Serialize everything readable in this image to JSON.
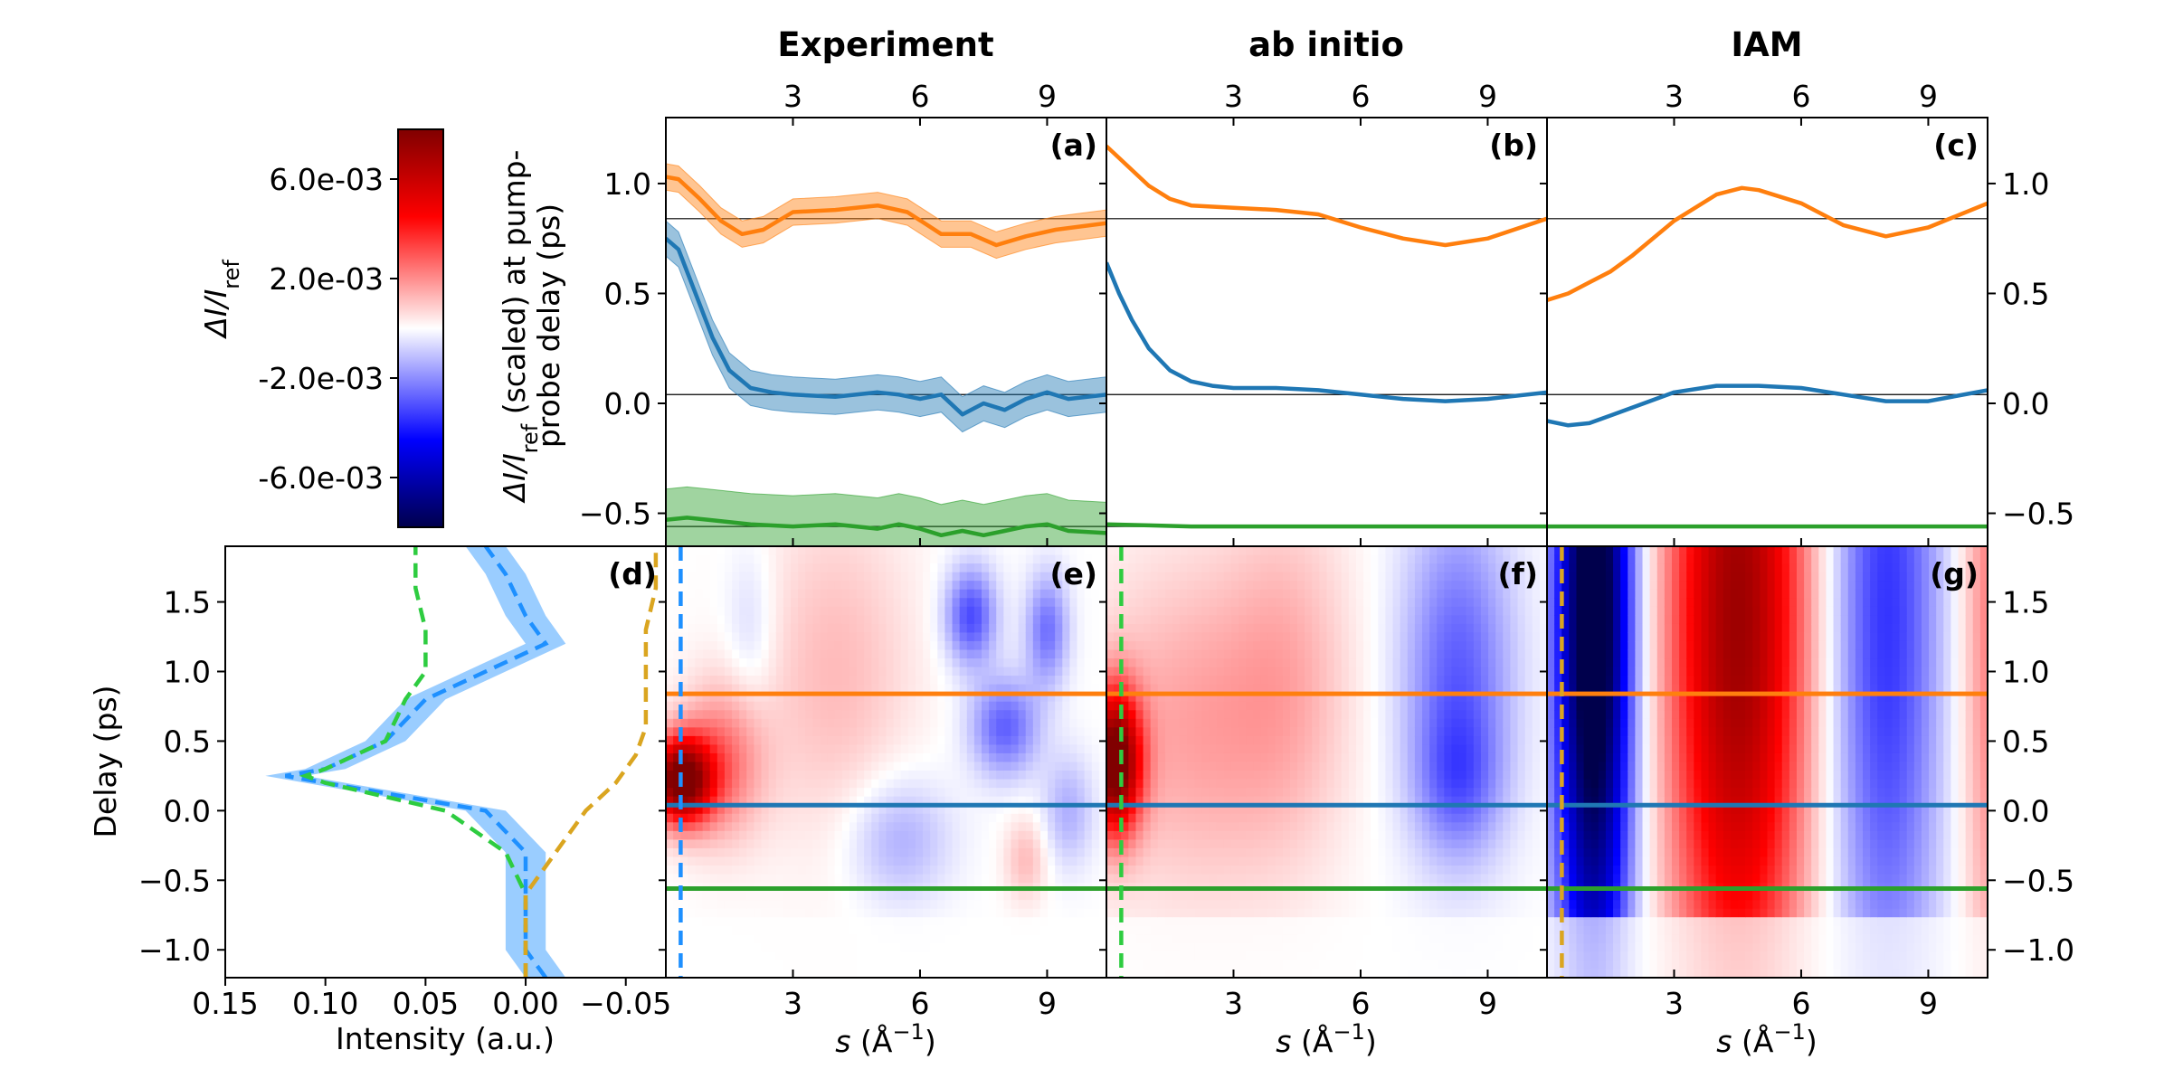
{
  "chart_data": {
    "type": "line",
    "top_x_ticks": [
      "3",
      "6",
      "9"
    ],
    "left_y_ticks": [
      "1.0",
      "0.5",
      "0.0",
      "−0.5"
    ],
    "right_y_ticks": [
      "1.0",
      "0.5",
      "0.0",
      "−0.5"
    ],
    "delay_ticks": [
      "1.5",
      "1.0",
      "0.5",
      "0.0",
      "−0.5",
      "−1.0"
    ],
    "s_ticks": [
      "3",
      "6",
      "9"
    ],
    "intensity_ticks": [
      "0.15",
      "0.10",
      "0.05",
      "0.00",
      "−0.05"
    ],
    "colorbar_ticks": [
      "6.0e-03",
      "2.0e-03",
      "-2.0e-03",
      "-6.0e-03"
    ],
    "colorbar_label": "ΔI/I",
    "colorbar_label_sub": "ref",
    "ylabel_top_line1_a": "ΔI/I",
    "ylabel_top_line1_sub": "ref",
    "ylabel_top_line1_b": " (scaled) at pump-",
    "ylabel_top_line2": "probe delay (ps)",
    "delay_label": "Delay (ps)",
    "intensity_label": "Intensity (a.u.)",
    "s_label_a": "s",
    "s_label_b": " (Å",
    "s_label_sup": "−1",
    "s_label_c": ")",
    "s_range": [
      0.0,
      10.4
    ],
    "delay_range": [
      -1.2,
      1.9
    ],
    "lineout_range": [
      -0.65,
      1.3
    ],
    "colorbar_range": [
      -0.008,
      0.008
    ],
    "intensity_range": [
      0.15,
      -0.07
    ],
    "reference_levels": {
      "orange": 0.84,
      "blue": 0.04,
      "green": -0.56
    },
    "colors": {
      "orange": "#ff7f0e",
      "blue": "#1f77b4",
      "green": "#2ca02c",
      "dash_blue": "#1e90ff",
      "dash_green": "#2ecc40",
      "dash_gold": "#daa520"
    },
    "panels": [
      {
        "id": "a",
        "label": "(a)",
        "title": "Experiment",
        "series": [
          {
            "color": "orange",
            "s": [
              0,
              0.3,
              0.8,
              1.3,
              1.8,
              2.3,
              3,
              4,
              5,
              5.7,
              6.5,
              7.2,
              7.8,
              8.5,
              9.2,
              10.4
            ],
            "y": [
              1.03,
              1.02,
              0.93,
              0.83,
              0.77,
              0.79,
              0.87,
              0.88,
              0.9,
              0.87,
              0.77,
              0.77,
              0.72,
              0.76,
              0.79,
              0.82
            ],
            "band": 0.06
          },
          {
            "color": "blue",
            "s": [
              0,
              0.3,
              0.7,
              1.1,
              1.5,
              2,
              2.5,
              3,
              4,
              5,
              5.5,
              6,
              6.5,
              7,
              7.5,
              8,
              8.5,
              9,
              9.5,
              10.4
            ],
            "y": [
              0.75,
              0.7,
              0.5,
              0.3,
              0.15,
              0.07,
              0.05,
              0.04,
              0.03,
              0.05,
              0.04,
              0.02,
              0.04,
              -0.05,
              0,
              -0.03,
              0.02,
              0.05,
              0.02,
              0.04
            ],
            "band": 0.08
          },
          {
            "color": "green",
            "s": [
              0,
              0.5,
              1,
              2,
              3,
              4,
              5,
              5.5,
              6,
              6.5,
              7,
              7.5,
              8,
              8.5,
              9,
              9.5,
              10.4
            ],
            "y": [
              -0.53,
              -0.52,
              -0.53,
              -0.55,
              -0.56,
              -0.55,
              -0.57,
              -0.55,
              -0.57,
              -0.6,
              -0.58,
              -0.6,
              -0.58,
              -0.56,
              -0.55,
              -0.58,
              -0.59
            ],
            "band": 0.14
          }
        ],
        "dashed_s": 0.35,
        "dashed_color": "dash_blue",
        "heatmap": [
          {
            "s": 0.35,
            "d": 0.22,
            "rs": 0.7,
            "rd": 0.3,
            "v": 0.0085
          },
          {
            "s": 1.3,
            "d": 0.35,
            "rs": 1.0,
            "rd": 0.55,
            "v": 0.0025
          },
          {
            "s": 2.0,
            "d": 1.3,
            "rs": 0.6,
            "rd": 0.6,
            "v": -0.0008
          },
          {
            "s": 4.0,
            "d": 1.0,
            "rs": 1.8,
            "rd": 1.2,
            "v": 0.0012
          },
          {
            "s": 7.2,
            "d": 1.4,
            "rs": 0.6,
            "rd": 0.35,
            "v": -0.0032
          },
          {
            "s": 8.0,
            "d": 0.6,
            "rs": 0.8,
            "rd": 0.35,
            "v": -0.0028
          },
          {
            "s": 9.0,
            "d": 1.3,
            "rs": 0.5,
            "rd": 0.4,
            "v": -0.0025
          },
          {
            "s": 5.5,
            "d": -0.2,
            "rs": 1.2,
            "rd": 0.45,
            "v": -0.0015
          },
          {
            "s": 8.5,
            "d": -0.35,
            "rs": 0.5,
            "rd": 0.3,
            "v": 0.0012
          },
          {
            "s": 9.5,
            "d": 0.0,
            "rs": 0.6,
            "rd": 0.4,
            "v": -0.0014
          }
        ]
      },
      {
        "id": "b",
        "label": "(b)",
        "title": "ab initio",
        "series": [
          {
            "color": "orange",
            "s": [
              0,
              0.5,
              1,
              1.5,
              2,
              3,
              4,
              5,
              6,
              7,
              8,
              9,
              10.4
            ],
            "y": [
              1.17,
              1.08,
              0.99,
              0.93,
              0.9,
              0.89,
              0.88,
              0.86,
              0.8,
              0.75,
              0.72,
              0.75,
              0.84
            ],
            "band": 0
          },
          {
            "color": "blue",
            "s": [
              0,
              0.3,
              0.6,
              1,
              1.5,
              2,
              2.5,
              3,
              4,
              5,
              6,
              7,
              8,
              9,
              10.4
            ],
            "y": [
              0.64,
              0.5,
              0.38,
              0.25,
              0.15,
              0.1,
              0.08,
              0.07,
              0.07,
              0.06,
              0.04,
              0.02,
              0.01,
              0.02,
              0.05
            ],
            "band": 0
          },
          {
            "color": "green",
            "s": [
              0,
              1,
              2,
              4,
              6,
              8,
              10.4
            ],
            "y": [
              -0.55,
              -0.555,
              -0.56,
              -0.56,
              -0.56,
              -0.56,
              -0.56
            ],
            "band": 0
          }
        ],
        "dashed_s": 0.35,
        "dashed_color": "dash_green",
        "heatmap": [
          {
            "s": 0.2,
            "d": 0.35,
            "rs": 0.6,
            "rd": 0.5,
            "v": 0.0085
          },
          {
            "s": 2.0,
            "d": 0.6,
            "rs": 2.5,
            "rd": 1.2,
            "v": 0.0016
          },
          {
            "s": 4.3,
            "d": 1.0,
            "rs": 1.5,
            "rd": 1.3,
            "v": 0.0011
          },
          {
            "s": 8.3,
            "d": 1.0,
            "rs": 1.3,
            "rd": 1.2,
            "v": -0.0028
          },
          {
            "s": 8.3,
            "d": 0.2,
            "rs": 1.0,
            "rd": 0.5,
            "v": -0.0016
          }
        ]
      },
      {
        "id": "c",
        "label": "(c)",
        "title": "IAM",
        "series": [
          {
            "color": "orange",
            "s": [
              0,
              0.5,
              1,
              1.5,
              2,
              3,
              4,
              4.6,
              5,
              6,
              7,
              8,
              9,
              10.4
            ],
            "y": [
              0.47,
              0.5,
              0.55,
              0.6,
              0.67,
              0.83,
              0.95,
              0.98,
              0.97,
              0.91,
              0.81,
              0.76,
              0.8,
              0.91
            ],
            "band": 0
          },
          {
            "color": "blue",
            "s": [
              0,
              0.5,
              1,
              2,
              3,
              4,
              5,
              6,
              7,
              8,
              9,
              10.4
            ],
            "y": [
              -0.08,
              -0.1,
              -0.09,
              -0.02,
              0.05,
              0.08,
              0.08,
              0.07,
              0.04,
              0.01,
              0.01,
              0.06
            ],
            "band": 0
          },
          {
            "color": "green",
            "s": [
              0,
              2,
              4,
              6,
              8,
              10.4
            ],
            "y": [
              -0.56,
              -0.56,
              -0.56,
              -0.56,
              -0.56,
              -0.56
            ],
            "band": 0
          }
        ],
        "dashed_s": 0.35,
        "dashed_color": "dash_gold",
        "heatmap": [
          {
            "s": 1.1,
            "d": 1.4,
            "rs": 0.9,
            "rd": 3.0,
            "v": -0.0095
          },
          {
            "s": 4.5,
            "d": 1.4,
            "rs": 1.6,
            "rd": 3.0,
            "v": 0.0072
          },
          {
            "s": 8.0,
            "d": 1.4,
            "rs": 1.3,
            "rd": 3.0,
            "v": -0.0036
          },
          {
            "s": 10.6,
            "d": 1.4,
            "rs": 0.8,
            "rd": 3.0,
            "v": 0.0025
          }
        ]
      }
    ],
    "intensity_panel": {
      "label": "(d)",
      "blue": {
        "d": [
          -1.2,
          -1.0,
          -0.8,
          -0.6,
          -0.3,
          0.0,
          0.1,
          0.2,
          0.25,
          0.3,
          0.5,
          0.8,
          1.0,
          1.2,
          1.4,
          1.7,
          1.9
        ],
        "x": [
          -0.01,
          0.0,
          0.0,
          0.0,
          0.0,
          0.02,
          0.06,
          0.1,
          0.12,
          0.1,
          0.07,
          0.05,
          0.02,
          -0.01,
          0.0,
          0.01,
          0.02
        ],
        "band": 0.01
      },
      "green": {
        "d": [
          -1.2,
          -0.6,
          -0.3,
          0.0,
          0.1,
          0.2,
          0.25,
          0.3,
          0.5,
          0.8,
          1.0,
          1.3,
          1.6,
          1.9
        ],
        "x": [
          0.0,
          0.0,
          0.01,
          0.04,
          0.07,
          0.1,
          0.11,
          0.1,
          0.07,
          0.06,
          0.05,
          0.05,
          0.055,
          0.055
        ],
        "band": 0
      },
      "gold": {
        "d": [
          -1.2,
          -0.8,
          -0.6,
          -0.4,
          -0.2,
          0.0,
          0.2,
          0.4,
          0.6,
          0.8,
          1.0,
          1.3,
          1.6,
          1.9
        ],
        "x": [
          0.0,
          0.0,
          0.0,
          -0.01,
          -0.02,
          -0.03,
          -0.045,
          -0.055,
          -0.06,
          -0.06,
          -0.06,
          -0.06,
          -0.065,
          -0.065
        ],
        "band": 0
      }
    }
  }
}
